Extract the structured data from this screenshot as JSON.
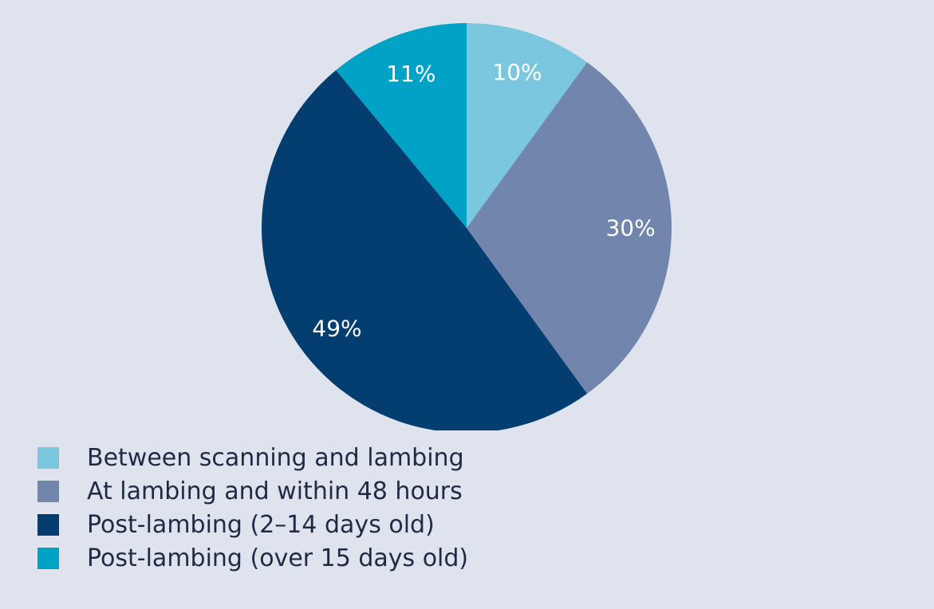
{
  "chart_data": {
    "type": "pie",
    "title": "",
    "slices": [
      {
        "label": "Between scanning and lambing",
        "value": 10,
        "display": "10%",
        "color": "#7ac7df"
      },
      {
        "label": "At lambing and within 48 hours",
        "value": 30,
        "display": "30%",
        "color": "#7286ad"
      },
      {
        "label": "Post-lambing (2–14 days old)",
        "value": 49,
        "display": "49%",
        "color": "#043d70"
      },
      {
        "label": "Post-lambing (over 15 days old)",
        "value": 11,
        "display": "11%",
        "color": "#00a2c6"
      }
    ],
    "start": "top",
    "direction": "clockwise",
    "legend_position": "bottom-left"
  }
}
